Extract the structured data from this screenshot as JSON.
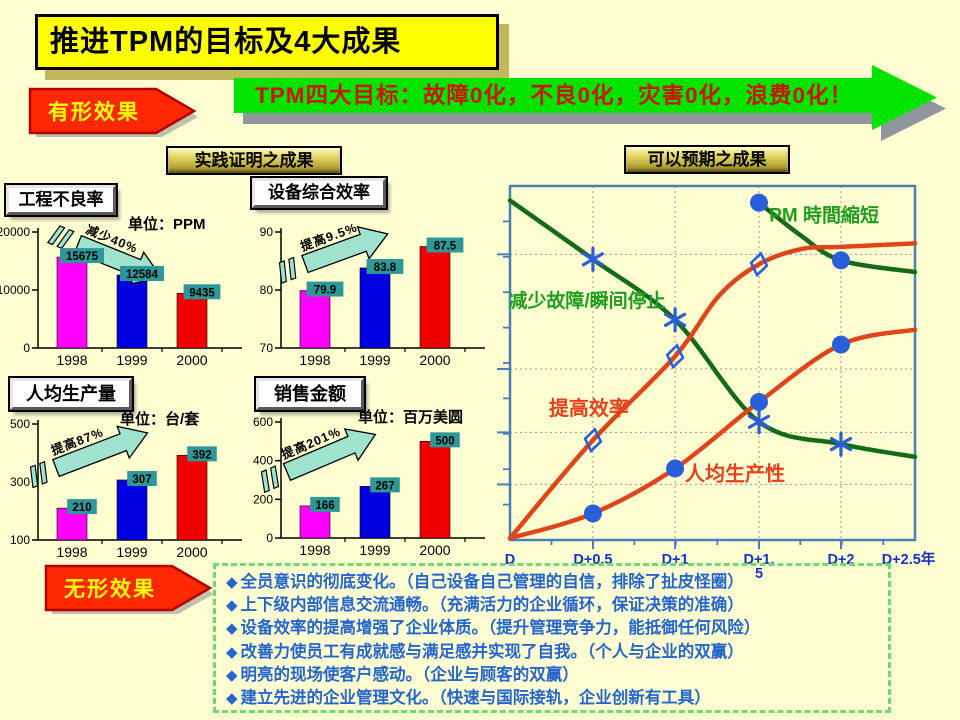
{
  "title": "推进TPM的目标及4大成果",
  "tangible_arrow": {
    "label": "有形效果"
  },
  "intangible_arrow": {
    "label": "无形效果"
  },
  "goal_banner": {
    "text": "TPM四大目标：故障0化，不良0化，灾害0化，浪费0化！"
  },
  "sections": {
    "proven": "实践证明之成果",
    "expected": "可以预期之成果"
  },
  "bullets": {
    "icon": "◆",
    "items": [
      "全员意识的彻底变化。（自己设备自己管理的自信，排除了扯皮怪圈）",
      "上下级内部信息交流通畅。（充满活力的企业循环，保证决策的准确）",
      "设备效率的提高增强了企业体质。（提升管理竞争力，能抵御任何风险）",
      "改善力使员工有成就感与满足感并实现了自我。（个人与企业的双赢）",
      "明亮的现场使客户感动。（企业与顾客的双赢）",
      "建立先进的企业管理文化。（快速与国际接轨，企业创新有工具）"
    ]
  },
  "colors": {
    "background": "#FFFFD2",
    "accent_red": "#FF2800",
    "accent_green": "#00E400",
    "banner_text_red": "#CC1400",
    "bar_magenta": "#FF00FF",
    "bar_blue": "#0000E0",
    "bar_red": "#F00000",
    "value_label_bg": "#2E9898",
    "arrow_teal": "#9FE3CF",
    "curve_green": "#156B15",
    "curve_red": "#E0451A",
    "marker_blue": "#2B5FD9",
    "bullet_blue": "#2666CC",
    "frame_blue": "#4A7EBB",
    "xlabel_blue": "#1830C8"
  },
  "chart_data": [
    {
      "type": "bar",
      "id": "bar1",
      "title": "工程不良率",
      "unit": "单位：PPM",
      "categories": [
        "1998",
        "1999",
        "2000"
      ],
      "values": [
        15675,
        12584,
        9435
      ],
      "yticks": [
        0,
        10000,
        20000
      ],
      "ymin": 0,
      "ymax": 20000,
      "arrow_label": "减少40%",
      "arrow_dir": "down"
    },
    {
      "type": "bar",
      "id": "bar2",
      "title": "设备综合效率",
      "unit": "",
      "categories": [
        "1998",
        "1999",
        "2000"
      ],
      "values": [
        79.9,
        83.8,
        87.5
      ],
      "yticks": [
        70,
        80,
        90
      ],
      "ymin": 70,
      "ymax": 90,
      "arrow_label": "提高9.5%",
      "arrow_dir": "up"
    },
    {
      "type": "bar",
      "id": "bar3",
      "title": "人均生产量",
      "unit": "单位：台/套",
      "categories": [
        "1998",
        "1999",
        "2000"
      ],
      "values": [
        210,
        307,
        392
      ],
      "yticks": [
        100,
        300,
        500
      ],
      "ymin": 100,
      "ymax": 500,
      "arrow_label": "提高87%",
      "arrow_dir": "up"
    },
    {
      "type": "bar",
      "id": "bar4",
      "title": "销售金额",
      "unit": "单位：百万美圆",
      "categories": [
        "1998",
        "1999",
        "2000"
      ],
      "values": [
        166,
        267,
        500
      ],
      "yticks": [
        0,
        200,
        400,
        600
      ],
      "ymin": 0,
      "ymax": 600,
      "arrow_label": "提高201%",
      "arrow_dir": "up"
    },
    {
      "type": "line",
      "id": "line1",
      "x_labels": [
        "D",
        "D+0.5",
        "D+1",
        "D+1.5",
        "D+2",
        "D+2.5年"
      ],
      "x_label_wrap": {
        "index": 3,
        "line1": "D+1.",
        "line2": "5"
      },
      "x_range_years": [
        0,
        2.5
      ],
      "y_axis_labeled": false,
      "grid": true,
      "series": [
        {
          "name": "减少故障/瞬间停止",
          "color": "green",
          "marker": "asterisk",
          "trend": "decreasing, flattens",
          "points": [
            [
              0,
              0.959
            ],
            [
              0.512,
              0.793
            ],
            [
              1.019,
              0.622
            ],
            [
              1.537,
              0.334
            ],
            [
              2.043,
              0.271
            ],
            [
              2.5,
              0.235
            ]
          ],
          "marker_idx": [
            1,
            2,
            3,
            4
          ],
          "label_u": -0.01,
          "label_f": 0.675
        },
        {
          "name": "PM 時間縮短",
          "color": "green",
          "marker": "dot",
          "trend": "decreasing, flattens",
          "points": [
            [
              1.537,
              0.953
            ],
            [
              1.79,
              0.862
            ],
            [
              2.043,
              0.79
            ],
            [
              2.5,
              0.757
            ]
          ],
          "marker_idx": [
            0,
            2
          ],
          "label_u": 1.6,
          "label_f": 0.917
        },
        {
          "name": "提高效率",
          "color": "red",
          "marker": "diamond",
          "trend": "s-curve rising to plateau",
          "points": [
            [
              0,
              0.005
            ],
            [
              0.512,
              0.282
            ],
            [
              1.019,
              0.519
            ],
            [
              1.29,
              0.69
            ],
            [
              1.537,
              0.779
            ],
            [
              1.8,
              0.822
            ],
            [
              2.043,
              0.828
            ],
            [
              2.5,
              0.838
            ]
          ],
          "marker_idx": [
            1,
            2,
            4
          ],
          "label_u": 0.24,
          "label_f": 0.37
        },
        {
          "name": "人均生产性",
          "color": "red",
          "marker": "dot",
          "trend": "rising, flattens late",
          "points": [
            [
              0,
              0.005
            ],
            [
              0.512,
              0.075
            ],
            [
              1.019,
              0.202
            ],
            [
              1.537,
              0.39
            ],
            [
              2.043,
              0.552
            ],
            [
              2.5,
              0.594
            ]
          ],
          "marker_idx": [
            1,
            2,
            3,
            4
          ],
          "label_u": 1.08,
          "label_f": 0.185
        }
      ]
    }
  ]
}
